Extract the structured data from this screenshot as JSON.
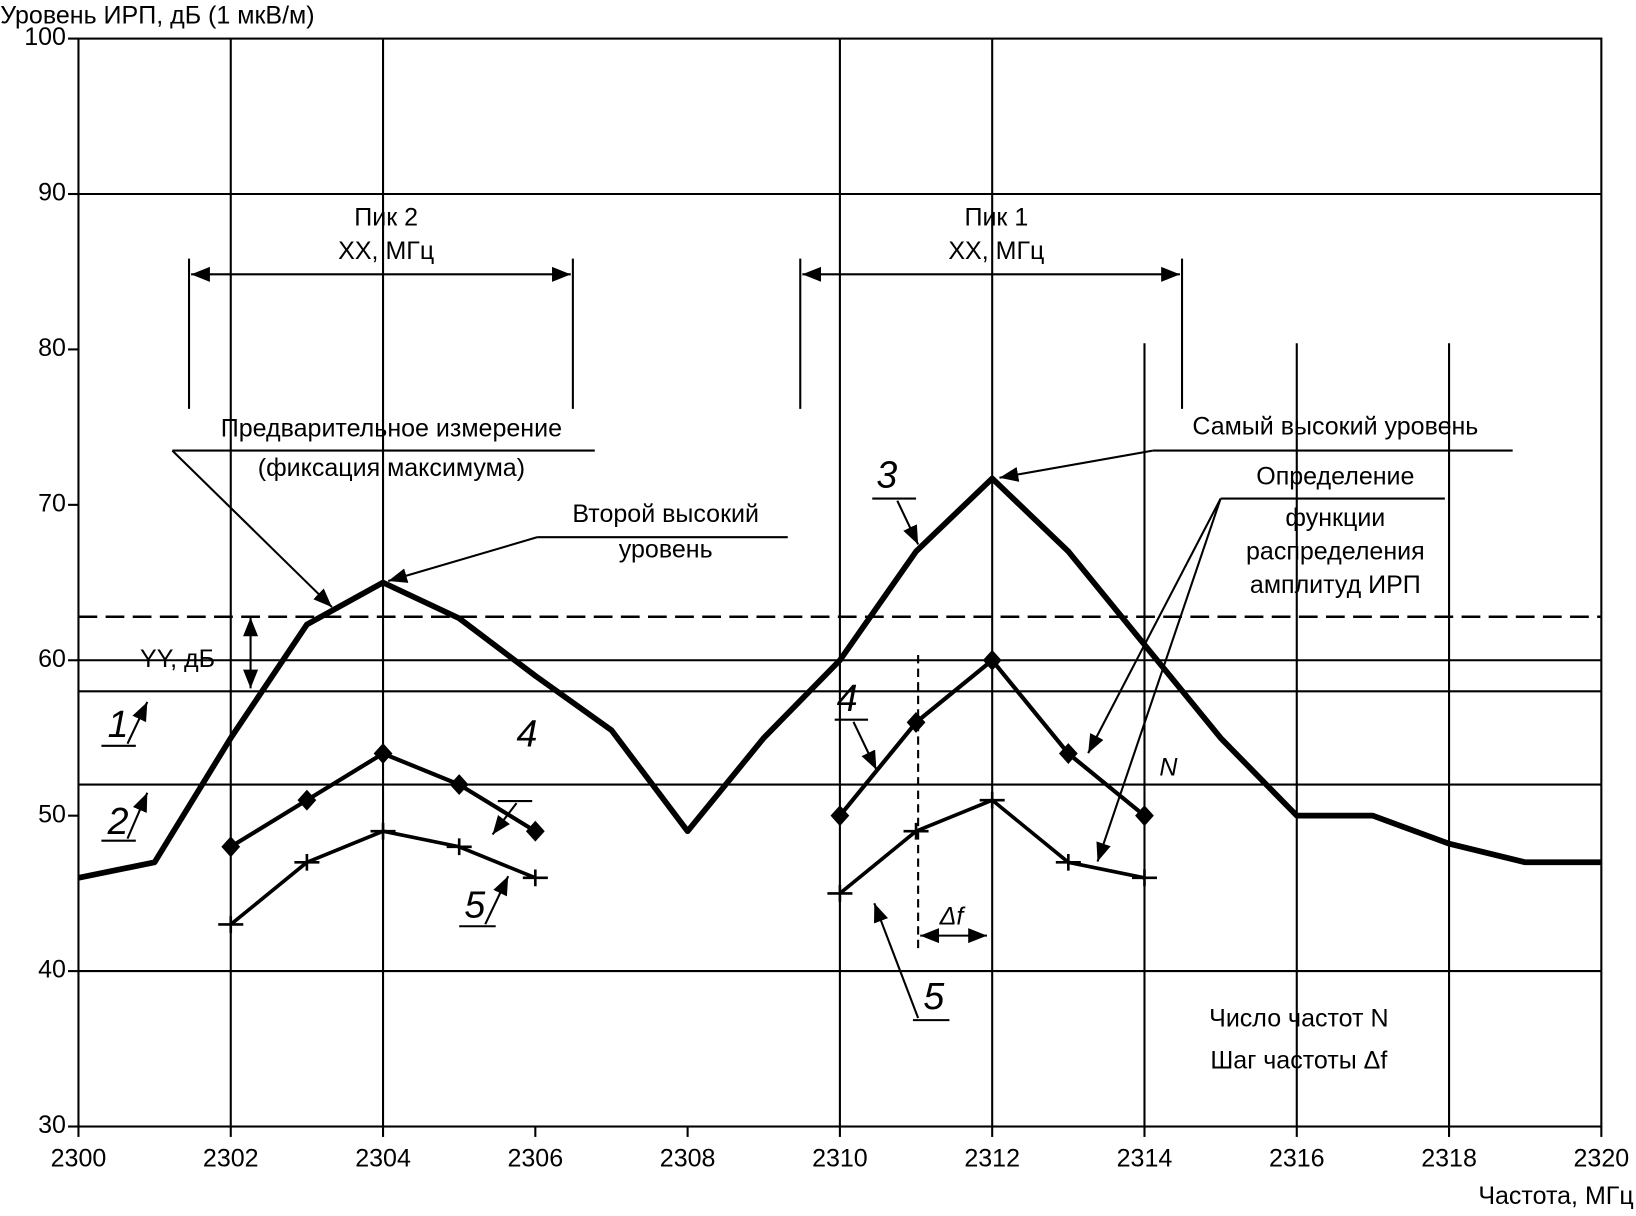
{
  "chart_data": {
    "type": "line",
    "y_label": "Уровень ИРП, дБ (1 мкВ/м)",
    "x_label": "Частота, МГц",
    "xlim": [
      2300,
      2320
    ],
    "xticks": [
      2300,
      2302,
      2304,
      2306,
      2308,
      2310,
      2312,
      2314,
      2316,
      2318,
      2320
    ],
    "ylim": [
      30,
      100
    ],
    "yticks": [
      30,
      40,
      50,
      60,
      70,
      80,
      90,
      100
    ],
    "hgrid": [
      40,
      60,
      90
    ],
    "vgrid": [
      2302,
      2304,
      2310,
      2312,
      2314,
      2316,
      2318
    ],
    "threshold": 62.8,
    "ref_lines": [
      {
        "name": "1",
        "value": 58
      },
      {
        "name": "2",
        "value": 52
      }
    ],
    "series": [
      {
        "name": "3",
        "color": "#000000",
        "x": [
          2300,
          2301,
          2302,
          2303,
          2304,
          2305,
          2306,
          2307,
          2308,
          2309,
          2310,
          2311,
          2312,
          2313,
          2314,
          2315,
          2316,
          2317,
          2318,
          2319,
          2320
        ],
        "values": [
          46,
          47,
          55,
          62.3,
          65,
          62.7,
          59,
          55.5,
          49,
          55,
          60,
          67,
          71.7,
          67,
          61,
          55,
          50,
          50,
          48.2,
          47,
          47
        ]
      },
      {
        "name": "4",
        "color": "#000000",
        "x": [
          2302,
          2303,
          2304,
          2305,
          2306
        ],
        "values": [
          48,
          51,
          54,
          52,
          49
        ]
      },
      {
        "name": "4",
        "color": "#000000",
        "x": [
          2310,
          2311,
          2312,
          2313,
          2314
        ],
        "values": [
          50,
          56,
          60,
          54,
          50
        ]
      },
      {
        "name": "5",
        "color": "#000000",
        "x": [
          2302,
          2303,
          2304,
          2305,
          2306
        ],
        "values": [
          43,
          47,
          49,
          48,
          46
        ]
      },
      {
        "name": "5",
        "color": "#000000",
        "x": [
          2310,
          2311,
          2312,
          2313,
          2314
        ],
        "values": [
          45,
          49,
          51,
          47,
          46
        ]
      }
    ],
    "annotations": [
      "Пик 2",
      "XX, МГц",
      "Пик 1",
      "XX, МГц",
      "Предварительное измерение",
      "(фиксация максимума)",
      "Второй высокий",
      "уровень",
      "Самый высокий уровень",
      "Определение",
      "функции",
      "распределения",
      "амплитуд ИРП",
      "YY, дБ",
      "N",
      "Δf",
      "Число частот  N",
      "Шаг частоты  Δf"
    ]
  }
}
